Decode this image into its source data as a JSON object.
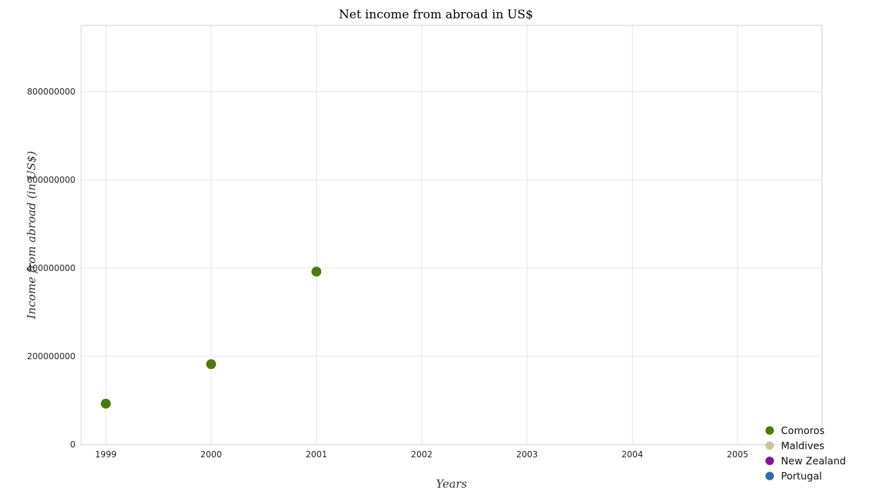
{
  "chart_data": {
    "type": "scatter",
    "title": "Net income from abroad in US$",
    "xlabel": "Years",
    "ylabel": "Income from abroad (in US$)",
    "categories": [
      "1999",
      "2000",
      "2001",
      "2002",
      "2003",
      "2004",
      "2005"
    ],
    "ylim": [
      0,
      950000000
    ],
    "yticks": [
      0,
      200000000,
      400000000,
      600000000,
      800000000
    ],
    "ytick_labels": [
      "0",
      "200000000",
      "400000000",
      "600000000",
      "800000000"
    ],
    "grid": true,
    "legend_position": "bottom-right",
    "series": [
      {
        "name": "Comoros",
        "color": "#4d7a0f",
        "values": [
          92800000,
          182300000,
          392000000,
          null,
          null,
          null,
          null
        ]
      },
      {
        "name": "Maldives",
        "color": "#c8c8a0",
        "values": [
          null,
          null,
          null,
          null,
          null,
          null,
          null
        ]
      },
      {
        "name": "New Zealand",
        "color": "#8b0ea0",
        "values": [
          null,
          null,
          null,
          null,
          null,
          null,
          null
        ]
      },
      {
        "name": "Portugal",
        "color": "#2f6f9f",
        "values": [
          null,
          null,
          null,
          null,
          null,
          null,
          null
        ]
      }
    ]
  }
}
